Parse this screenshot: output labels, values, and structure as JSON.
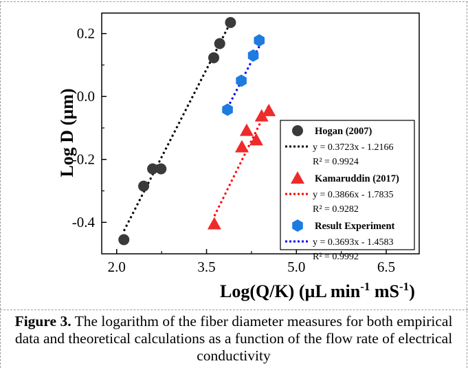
{
  "chart_data": {
    "type": "scatter",
    "title": "",
    "xlabel": "Log(Q/K) (µL min⁻¹ mS⁻¹)",
    "ylabel": "Log D (µm)",
    "xlim": [
      1.75,
      7.05
    ],
    "ylim": [
      -0.5,
      0.265
    ],
    "xticks": [
      "2.0",
      "3.5",
      "5.0",
      "6.5"
    ],
    "xtick_values": [
      2.0,
      3.5,
      5.0,
      6.5
    ],
    "yticks": [
      "0.2",
      "0.0",
      "-0.2",
      "-0.4"
    ],
    "ytick_values": [
      0.2,
      0.0,
      -0.2,
      -0.4
    ],
    "legend_position": "bottom-right",
    "series": [
      {
        "name": "Hogan (2007)",
        "marker": "circle",
        "color": "#3a3a3a",
        "points": [
          [
            2.12,
            -0.455
          ],
          [
            2.45,
            -0.285
          ],
          [
            2.6,
            -0.23
          ],
          [
            2.74,
            -0.23
          ],
          [
            3.62,
            0.123
          ],
          [
            3.72,
            0.168
          ],
          [
            3.9,
            0.235
          ]
        ],
        "fit": {
          "label": "y = 0.3723x - 1.2166",
          "r2": "R² = 0.9924",
          "slope": 0.3723,
          "intercept": -1.2166,
          "x_range": [
            2.12,
            3.9
          ],
          "color": "#000000"
        }
      },
      {
        "name": "Kamaruddin (2017)",
        "marker": "triangle",
        "color": "#ee2b2b",
        "points": [
          [
            3.63,
            -0.405
          ],
          [
            4.09,
            -0.16
          ],
          [
            4.17,
            -0.108
          ],
          [
            4.33,
            -0.138
          ],
          [
            4.42,
            -0.062
          ],
          [
            4.54,
            -0.045
          ]
        ],
        "fit": {
          "label": "y = 0.3866x - 1.7835",
          "r2": "R² = 0.9282",
          "slope": 0.3866,
          "intercept": -1.7835,
          "x_range": [
            3.63,
            4.54
          ],
          "color": "#ff0000"
        }
      },
      {
        "name": "Result Experiment",
        "marker": "hexagon",
        "color": "#1e7be0",
        "points": [
          [
            3.85,
            -0.042
          ],
          [
            4.08,
            0.05
          ],
          [
            4.28,
            0.13
          ],
          [
            4.38,
            0.178
          ]
        ],
        "fit": {
          "label": "y = 0.3693x - 1.4583",
          "r2": "R² = 0.9992",
          "slope": 0.3693,
          "intercept": -1.4583,
          "x_range": [
            3.85,
            4.38
          ],
          "color": "#0000ff"
        }
      }
    ]
  },
  "caption": {
    "label": "Figure 3.",
    "text": " The logarithm of the fiber diameter measures for both empirical data and theoretical calculations as a function of the flow rate of electrical conductivity"
  }
}
